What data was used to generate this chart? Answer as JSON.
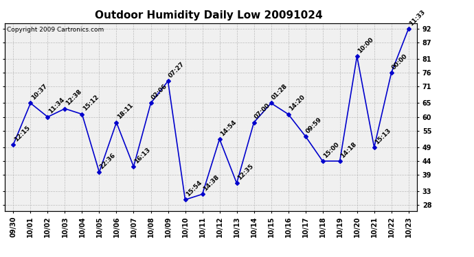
{
  "title": "Outdoor Humidity Daily Low 20091024",
  "copyright": "Copyright 2009 Cartronics.com",
  "x_labels": [
    "09/30",
    "10/01",
    "10/02",
    "10/03",
    "10/04",
    "10/05",
    "10/06",
    "10/07",
    "10/08",
    "10/09",
    "10/10",
    "10/11",
    "10/12",
    "10/13",
    "10/14",
    "10/15",
    "10/16",
    "10/17",
    "10/18",
    "10/19",
    "10/20",
    "10/21",
    "10/22",
    "10/23"
  ],
  "y_values": [
    50,
    65,
    60,
    63,
    61,
    40,
    58,
    42,
    65,
    73,
    30,
    32,
    52,
    36,
    58,
    65,
    61,
    53,
    44,
    44,
    82,
    49,
    76,
    92
  ],
  "point_labels": [
    "12:15",
    "10:37",
    "11:34",
    "12:38",
    "15:12",
    "22:36",
    "18:11",
    "16:13",
    "02:06",
    "07:27",
    "15:54",
    "14:38",
    "14:54",
    "12:35",
    "07:00",
    "01:28",
    "14:20",
    "09:59",
    "15:00",
    "14:18",
    "10:00",
    "15:13",
    "00:00",
    "11:33"
  ],
  "ylim": [
    26,
    94
  ],
  "yticks": [
    28,
    33,
    39,
    44,
    49,
    55,
    60,
    65,
    71,
    76,
    81,
    87,
    92
  ],
  "line_color": "#0000CC",
  "marker_color": "#0000CC",
  "bg_color": "#FFFFFF",
  "plot_bg_color": "#F0F0F0",
  "grid_color": "#BBBBBB",
  "title_fontsize": 11,
  "label_fontsize": 6.5,
  "tick_fontsize": 7,
  "copyright_fontsize": 6.5
}
